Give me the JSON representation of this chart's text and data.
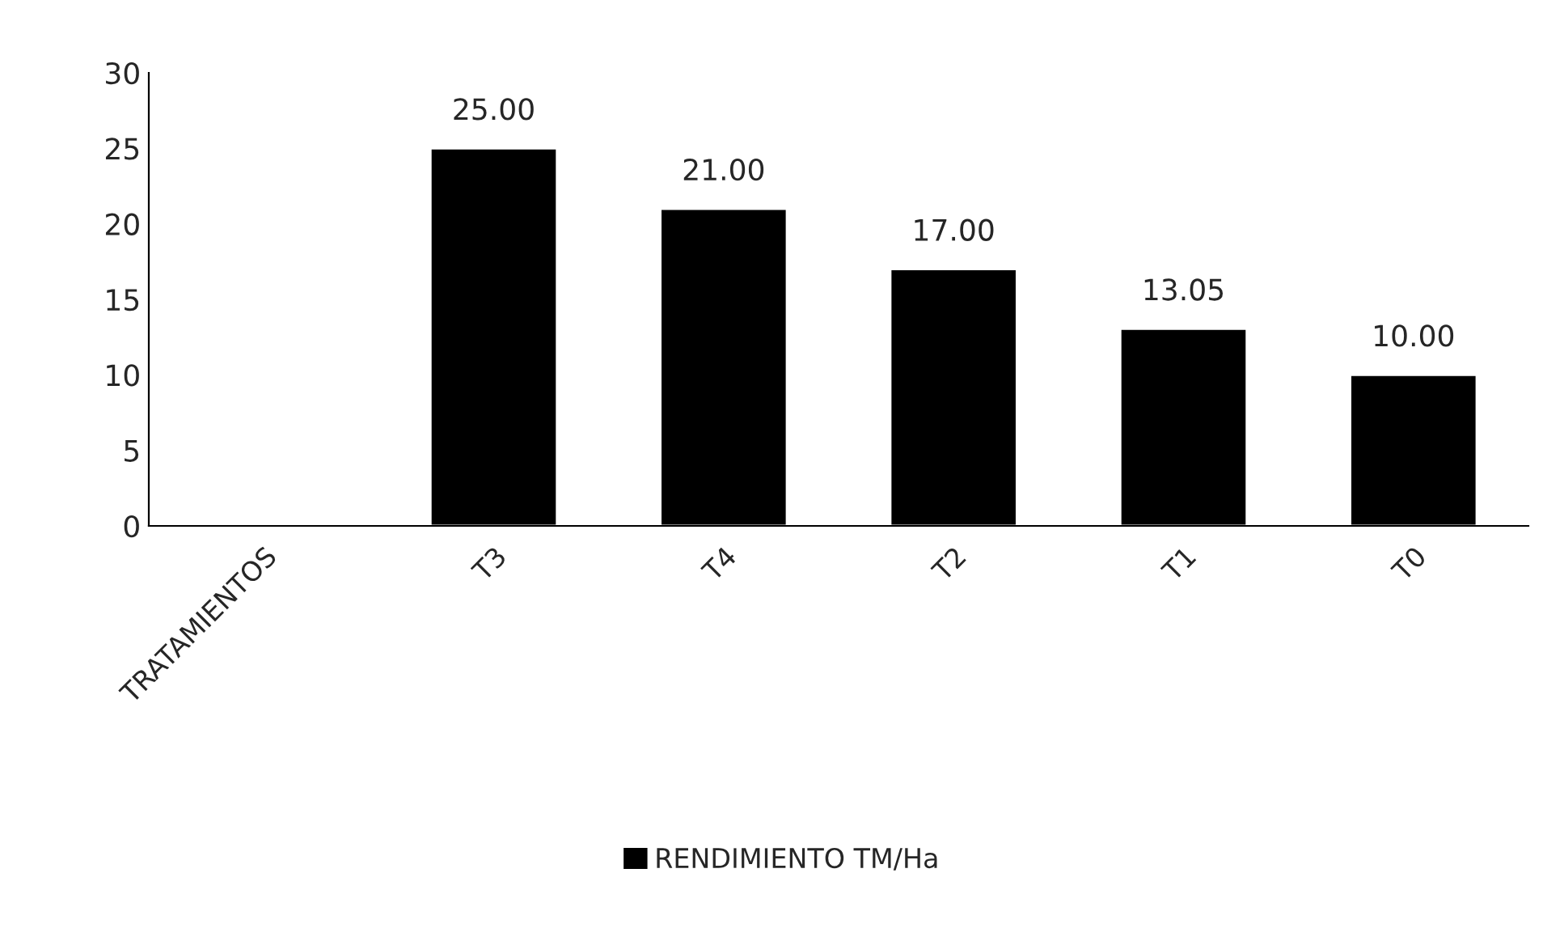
{
  "chart_data": {
    "type": "bar",
    "categories": [
      "TRATAMIENTOS",
      "T3",
      "T4",
      "T2",
      "T1",
      "T0"
    ],
    "series": [
      {
        "name": "RENDIMIENTO TM/Ha",
        "color": "#000000",
        "values": [
          null,
          25.0,
          21.0,
          17.0,
          13.05,
          10.0
        ]
      }
    ],
    "value_labels": [
      null,
      "25.00",
      "21.00",
      "17.00",
      "13.05",
      "10.00"
    ],
    "ylim": [
      0,
      30
    ],
    "yticks": [
      0,
      5,
      10,
      15,
      20,
      25,
      30
    ],
    "grid": false,
    "legend": "bottom"
  }
}
